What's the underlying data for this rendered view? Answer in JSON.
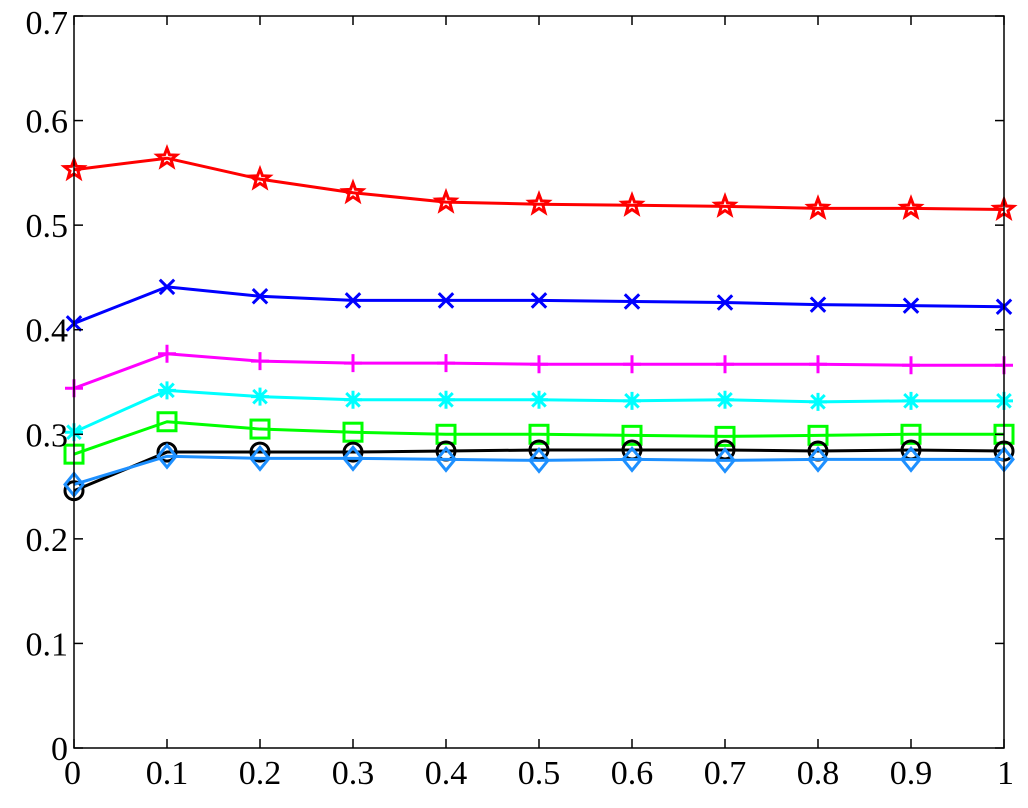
{
  "chart_data": {
    "type": "line",
    "x": [
      0,
      0.1,
      0.2,
      0.3,
      0.4,
      0.5,
      0.6,
      0.7,
      0.8,
      0.9,
      1
    ],
    "xlim": [
      0,
      1
    ],
    "ylim": [
      0,
      0.7
    ],
    "xticks": [
      0,
      0.1,
      0.2,
      0.3,
      0.4,
      0.5,
      0.6,
      0.7,
      0.8,
      0.9,
      1
    ],
    "xtick_labels": [
      "0",
      "0.1",
      "0.2",
      "0.3",
      "0.4",
      "0.5",
      "0.6",
      "0.7",
      "0.8",
      "0.9",
      "1"
    ],
    "yticks": [
      0,
      0.1,
      0.2,
      0.3,
      0.4,
      0.5,
      0.6,
      0.7
    ],
    "ytick_labels": [
      "0",
      "0.1",
      "0.2",
      "0.3",
      "0.4",
      "0.5",
      "0.6",
      "0.7"
    ],
    "grid": false,
    "series": [
      {
        "color": "#ff0000",
        "marker": "star",
        "values": [
          0.553,
          0.564,
          0.544,
          0.531,
          0.522,
          0.52,
          0.519,
          0.518,
          0.516,
          0.516,
          0.515
        ]
      },
      {
        "color": "#0000ff",
        "marker": "x",
        "values": [
          0.406,
          0.441,
          0.432,
          0.428,
          0.428,
          0.428,
          0.427,
          0.426,
          0.424,
          0.423,
          0.422
        ]
      },
      {
        "color": "#ff00ff",
        "marker": "plus",
        "values": [
          0.344,
          0.377,
          0.37,
          0.368,
          0.368,
          0.367,
          0.367,
          0.367,
          0.367,
          0.366,
          0.366
        ]
      },
      {
        "color": "#00ffff",
        "marker": "asterisk",
        "values": [
          0.302,
          0.342,
          0.336,
          0.333,
          0.333,
          0.333,
          0.332,
          0.333,
          0.331,
          0.332,
          0.332
        ]
      },
      {
        "color": "#00ff00",
        "marker": "square",
        "values": [
          0.281,
          0.312,
          0.305,
          0.302,
          0.3,
          0.3,
          0.299,
          0.298,
          0.299,
          0.3,
          0.3
        ]
      },
      {
        "color": "#000000",
        "marker": "circle",
        "values": [
          0.246,
          0.283,
          0.283,
          0.283,
          0.284,
          0.285,
          0.285,
          0.285,
          0.284,
          0.285,
          0.284
        ]
      },
      {
        "color": "#1e90ff",
        "marker": "diamond",
        "values": [
          0.252,
          0.279,
          0.277,
          0.277,
          0.276,
          0.275,
          0.276,
          0.275,
          0.276,
          0.276,
          0.276
        ]
      }
    ]
  }
}
